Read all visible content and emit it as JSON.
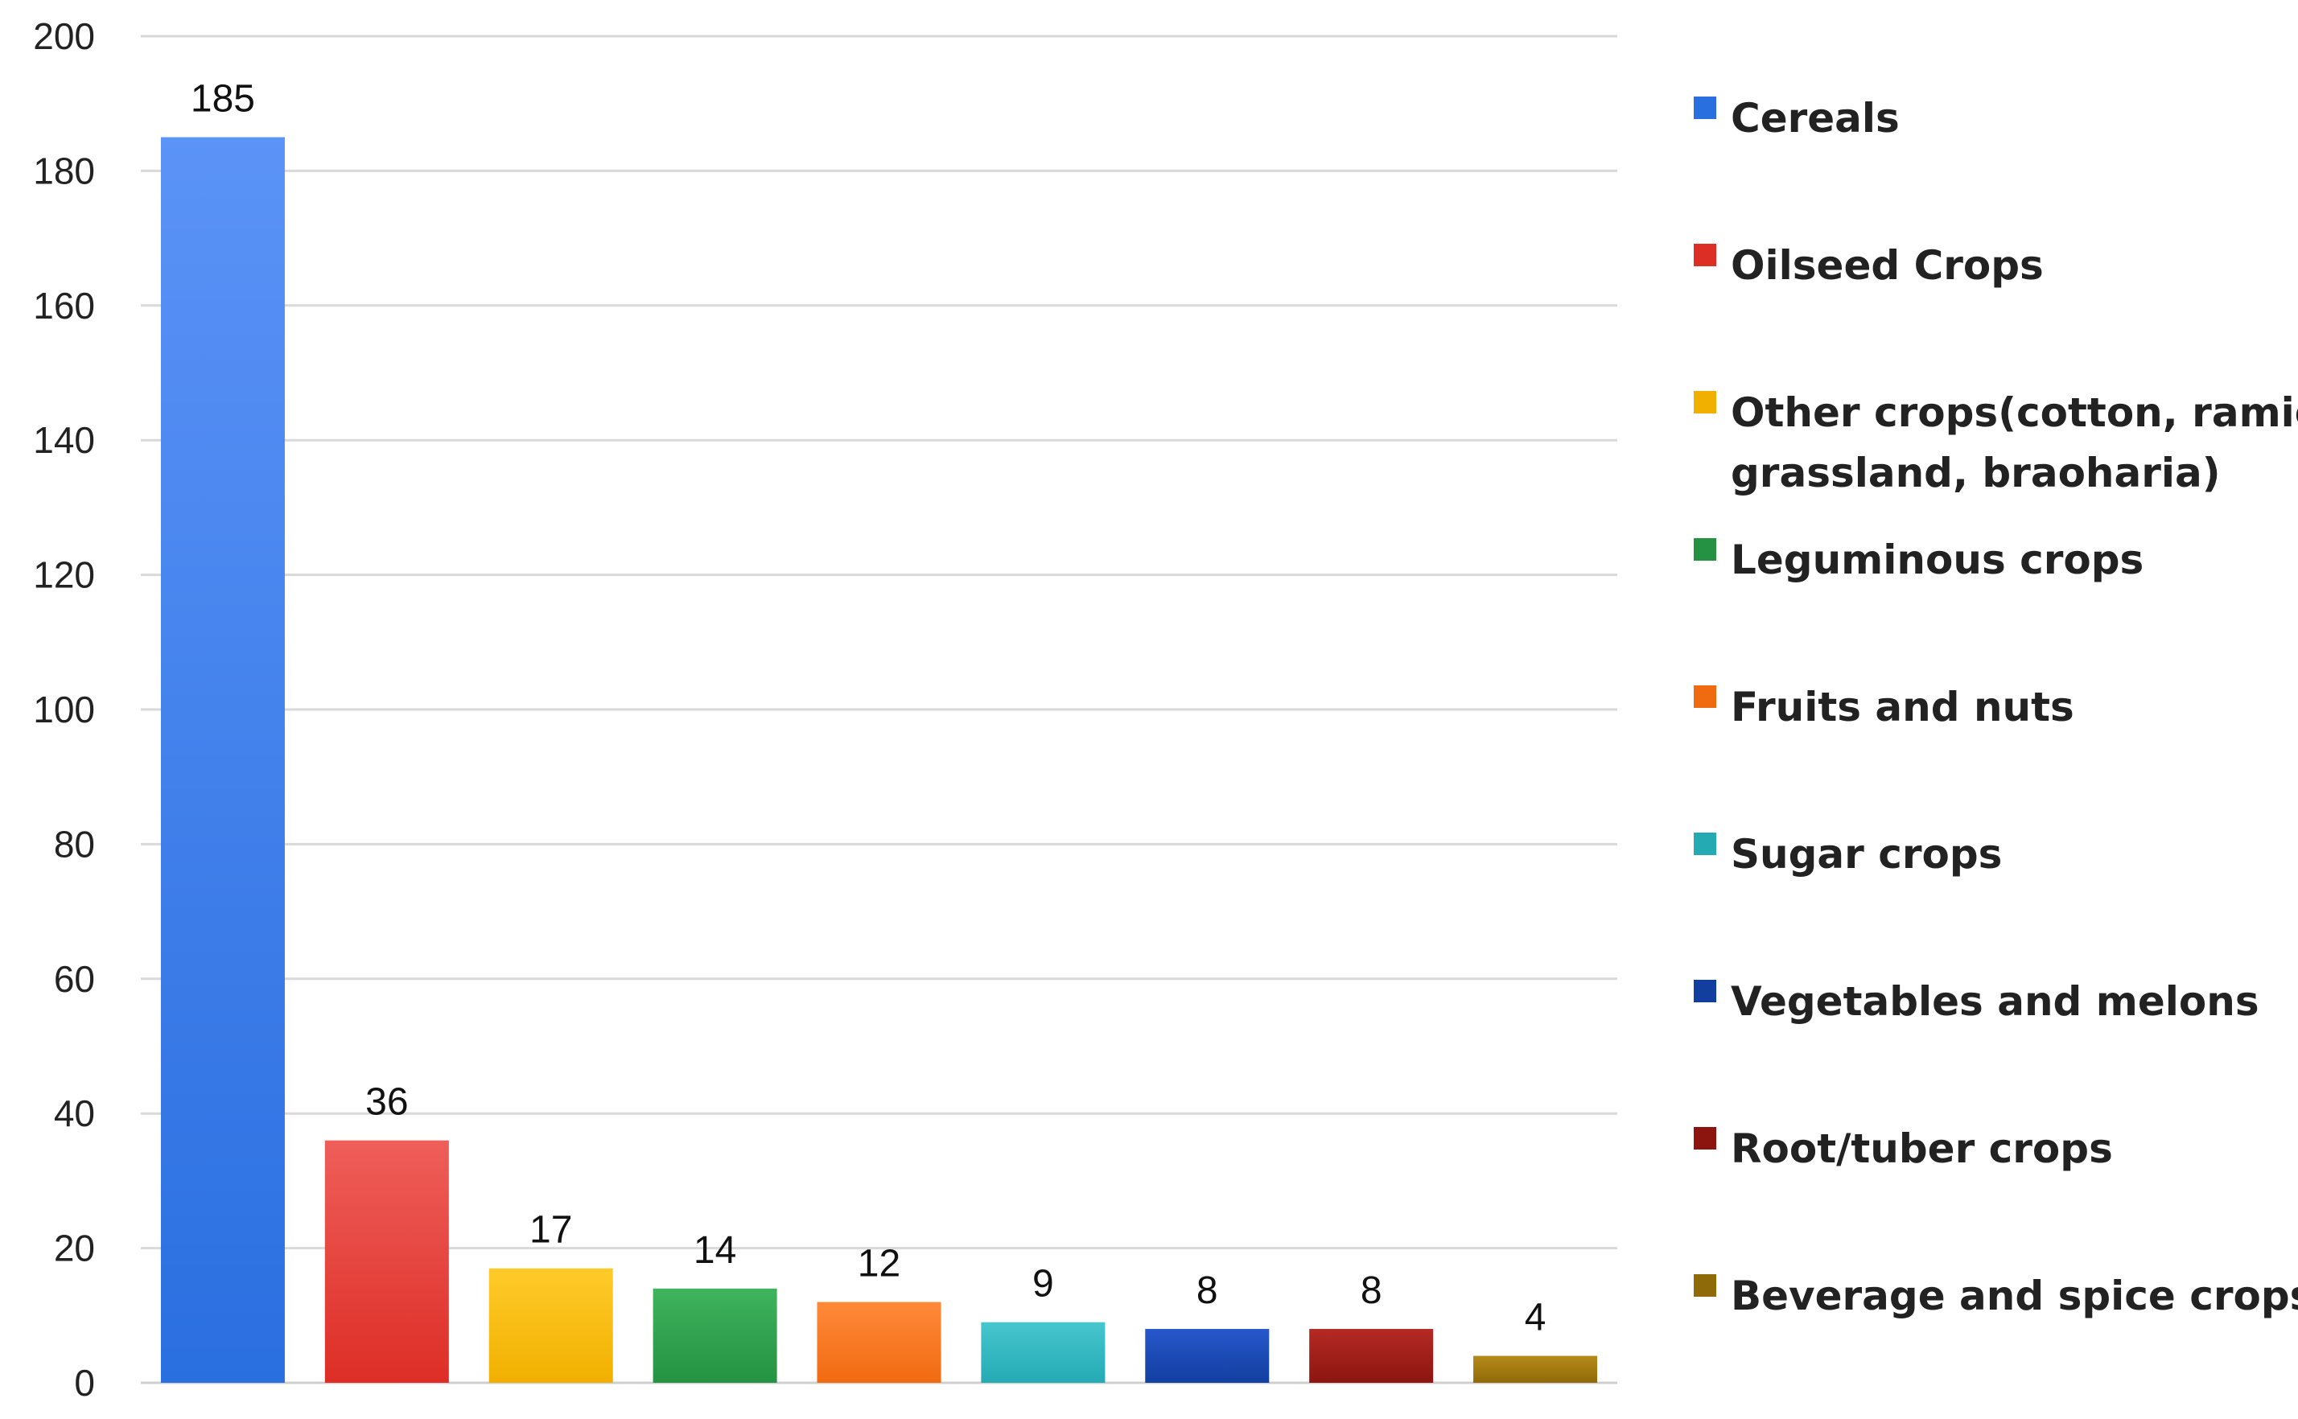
{
  "chart_data": {
    "type": "bar",
    "title": "",
    "xlabel": "",
    "ylabel": "",
    "ylim": [
      0,
      200
    ],
    "yticks": [
      0,
      20,
      40,
      60,
      80,
      100,
      120,
      140,
      160,
      180,
      200
    ],
    "grid": true,
    "legend_position": "right",
    "categories": [
      "Cereals",
      "Oilseed Crops",
      "Other crops(cotton, ramie , grassland, braoharia)",
      "Leguminous crops",
      "Fruits and nuts",
      "Sugar crops",
      "Vegetables and melons",
      "Root/tuber crops",
      "Beverage and spice crops"
    ],
    "values": [
      185,
      36,
      17,
      14,
      12,
      9,
      8,
      8,
      4
    ],
    "data_labels": [
      "185",
      "36",
      "17",
      "14",
      "12",
      "9",
      "8",
      "8",
      "4"
    ],
    "legend": [
      {
        "lines": [
          "Cereals"
        ]
      },
      {
        "lines": [
          "Oilseed Crops"
        ]
      },
      {
        "lines": [
          "Other crops(cotton, ramie ,",
          "grassland, braoharia)"
        ]
      },
      {
        "lines": [
          "Leguminous crops"
        ]
      },
      {
        "lines": [
          "Fruits and nuts"
        ]
      },
      {
        "lines": [
          "Sugar crops"
        ]
      },
      {
        "lines": [
          "Vegetables and melons"
        ]
      },
      {
        "lines": [
          "Root/tuber crops"
        ]
      },
      {
        "lines": [
          "Beverage and spice crops"
        ]
      }
    ],
    "colors": [
      {
        "top": "#5b93f7",
        "bottom": "#2a6fe0"
      },
      {
        "top": "#ef5e5a",
        "bottom": "#dd2e26"
      },
      {
        "top": "#ffcb2a",
        "bottom": "#f1b000"
      },
      {
        "top": "#3fb35d",
        "bottom": "#249242"
      },
      {
        "top": "#ff8a3a",
        "bottom": "#f06a10"
      },
      {
        "top": "#47c6cf",
        "bottom": "#24aab3"
      },
      {
        "top": "#2757cc",
        "bottom": "#123f9f"
      },
      {
        "top": "#b52a24",
        "bottom": "#8c1510"
      },
      {
        "top": "#b58a1a",
        "bottom": "#8f6a08"
      }
    ],
    "gridline_color": "#d9d9d9"
  }
}
